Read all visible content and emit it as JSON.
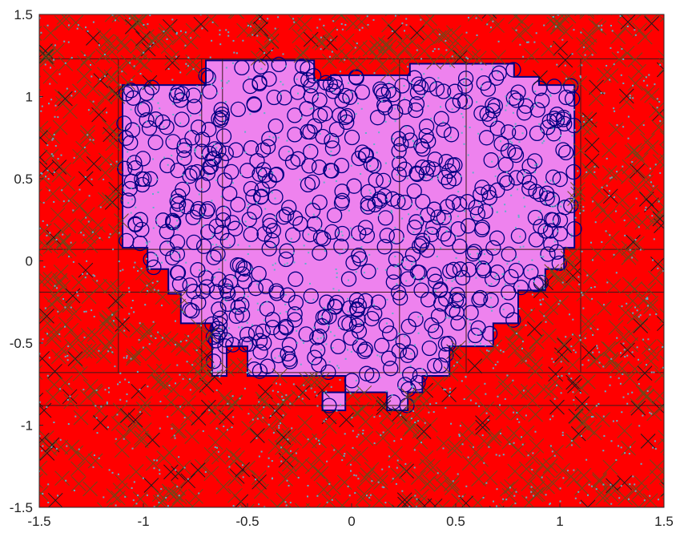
{
  "chart_data": {
    "type": "scatter",
    "title": "",
    "xlabel": "",
    "ylabel": "",
    "xlim": [
      -1.5,
      1.5
    ],
    "ylim": [
      -1.5,
      1.5
    ],
    "grid": false,
    "legend": "none",
    "x_ticks": [
      -1.5,
      -1,
      -0.5,
      0,
      0.5,
      1,
      1.5
    ],
    "x_tick_labels": [
      "-1.5",
      "-1",
      "-0.5",
      "0",
      "0.5",
      "1",
      "1.5"
    ],
    "y_ticks": [
      1.5,
      1,
      0.5,
      0,
      -0.5,
      -1,
      -1.5
    ],
    "y_tick_labels": [
      "1.5",
      "1",
      "0.5",
      "0",
      "-0.5",
      "-1",
      "-1.5"
    ],
    "colors": {
      "outside_region": "#ff0000",
      "inside_region": "#ee82ee",
      "inside_marker": "#000080",
      "outside_marker": "#6b4a1a",
      "outside_marker_dark": "#1c1c1c",
      "dot_marker": "#5fb0c8"
    },
    "inside_region_polygon": [
      [
        -1.1,
        1.07
      ],
      [
        -0.7,
        1.07
      ],
      [
        -0.7,
        1.22
      ],
      [
        -0.18,
        1.22
      ],
      [
        -0.18,
        1.1
      ],
      [
        -0.1,
        1.1
      ],
      [
        -0.1,
        1.13
      ],
      [
        0.28,
        1.13
      ],
      [
        0.28,
        1.2
      ],
      [
        0.78,
        1.2
      ],
      [
        0.78,
        1.12
      ],
      [
        0.9,
        1.12
      ],
      [
        0.9,
        1.07
      ],
      [
        1.07,
        1.07
      ],
      [
        1.07,
        0.08
      ],
      [
        1.02,
        0.08
      ],
      [
        1.02,
        -0.05
      ],
      [
        0.93,
        -0.05
      ],
      [
        0.93,
        -0.18
      ],
      [
        0.8,
        -0.18
      ],
      [
        0.8,
        -0.38
      ],
      [
        0.68,
        -0.38
      ],
      [
        0.68,
        -0.52
      ],
      [
        0.47,
        -0.52
      ],
      [
        0.47,
        -0.7
      ],
      [
        0.34,
        -0.7
      ],
      [
        0.34,
        -0.8
      ],
      [
        0.27,
        -0.8
      ],
      [
        0.27,
        -0.91
      ],
      [
        0.17,
        -0.91
      ],
      [
        0.17,
        -0.8
      ],
      [
        -0.14,
        -0.8
      ],
      [
        -0.14,
        -0.91
      ],
      [
        -0.03,
        -0.91
      ],
      [
        -0.03,
        -0.7
      ],
      [
        -0.5,
        -0.7
      ],
      [
        -0.5,
        -0.52
      ],
      [
        -0.6,
        -0.52
      ],
      [
        -0.6,
        -0.7
      ],
      [
        -0.67,
        -0.7
      ],
      [
        -0.67,
        -0.38
      ],
      [
        -0.82,
        -0.38
      ],
      [
        -0.82,
        -0.2
      ],
      [
        -0.88,
        -0.2
      ],
      [
        -0.88,
        -0.05
      ],
      [
        -0.98,
        -0.05
      ],
      [
        -0.98,
        0.08
      ],
      [
        -1.1,
        0.08
      ]
    ],
    "cell_lines": {
      "vertical": [
        -1.12,
        -0.72,
        -0.62,
        0.23,
        0.55,
        1.1
      ],
      "horizontal": [
        1.23,
        0.07,
        -0.19,
        -0.68,
        -0.88
      ]
    },
    "series": [
      {
        "name": "",
        "marker": "o",
        "count": 620
      },
      {
        "name": "",
        "marker": "x",
        "count": 900
      },
      {
        "name": "",
        "marker": ".",
        "count": 1500
      }
    ]
  }
}
